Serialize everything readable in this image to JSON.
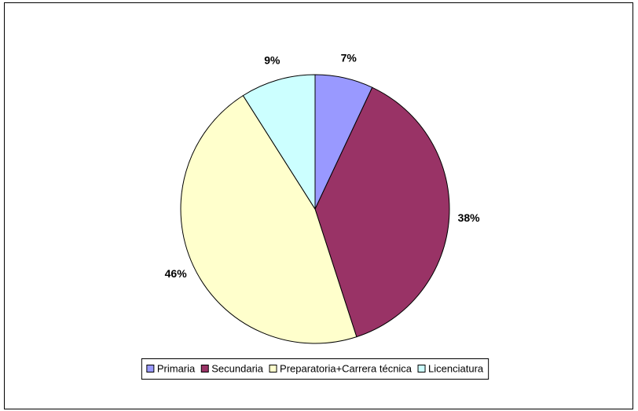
{
  "chart_data": {
    "type": "pie",
    "categories": [
      "Primaria",
      "Secundaria",
      "Preparatoria+Carrera técnica",
      "Licenciatura"
    ],
    "values": [
      7,
      38,
      46,
      9
    ],
    "value_labels": [
      "7%",
      "38%",
      "46%",
      "9%"
    ],
    "colors": [
      "#9999ff",
      "#993366",
      "#ffffcc",
      "#ccffff"
    ],
    "legend": "bottom"
  }
}
